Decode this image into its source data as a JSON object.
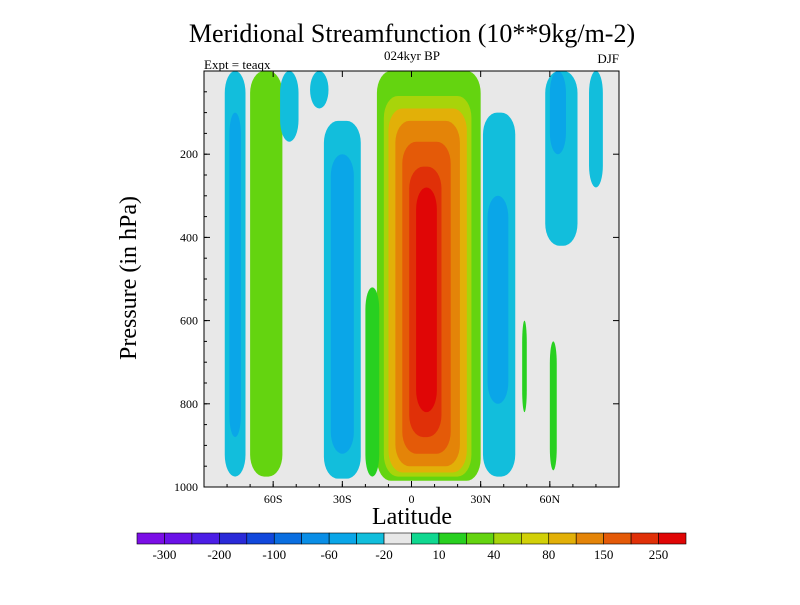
{
  "chart_data": {
    "type": "heatmap",
    "title": "Meridional Streamfunction (10**9kg/m-2)",
    "subtitle": "024kyr BP",
    "left_label": "Expt = teaqx",
    "right_label": "DJF",
    "xlabel": "Latitude",
    "ylabel": "Pressure (in hPa)",
    "xlim": [
      -90,
      90
    ],
    "ylim": [
      1000,
      0
    ],
    "x_ticks": [
      {
        "value": -60,
        "label": "60S"
      },
      {
        "value": -30,
        "label": "30S"
      },
      {
        "value": 0,
        "label": "0"
      },
      {
        "value": 30,
        "label": "30N"
      },
      {
        "value": 60,
        "label": "60N"
      }
    ],
    "y_ticks": [
      {
        "value": 200,
        "label": "200"
      },
      {
        "value": 400,
        "label": "400"
      },
      {
        "value": 600,
        "label": "600"
      },
      {
        "value": 800,
        "label": "800"
      },
      {
        "value": 1000,
        "label": "1000"
      }
    ],
    "colorbar": {
      "colors": [
        "#7b0ee6",
        "#6a12e8",
        "#4c1ee6",
        "#2a2ad8",
        "#1248dc",
        "#0a6ee0",
        "#0a8ee6",
        "#0aa6e8",
        "#12bedc",
        "#e8e8e8",
        "#10d890",
        "#28d020",
        "#64d410",
        "#a8d40a",
        "#d2d008",
        "#e2b008",
        "#e48408",
        "#e45a08",
        "#e03008",
        "#e00606"
      ],
      "labels": [
        "-300",
        "-200",
        "-100",
        "-60",
        "-20",
        "10",
        "40",
        "80",
        "150",
        "250"
      ],
      "label_after_box": [
        0,
        2,
        4,
        6,
        8,
        10,
        12,
        14,
        16,
        18
      ]
    },
    "regions": [
      {
        "lat": [
          -81,
          -72
        ],
        "p": [
          0,
          975
        ],
        "level": -25,
        "name": "polar cell south"
      },
      {
        "lat": [
          -79,
          -74
        ],
        "p": [
          100,
          880
        ],
        "level": -45,
        "name": "polar cell south core"
      },
      {
        "lat": [
          -70,
          -56
        ],
        "p": [
          0,
          975
        ],
        "level": 35,
        "name": "ferrel cell south"
      },
      {
        "lat": [
          -57,
          -49
        ],
        "p": [
          0,
          170
        ],
        "level": -25,
        "name": "upper south branch"
      },
      {
        "lat": [
          -38,
          -22
        ],
        "p": [
          120,
          980
        ],
        "level": -25,
        "name": "south negative cell"
      },
      {
        "lat": [
          -35,
          -25
        ],
        "p": [
          200,
          920
        ],
        "level": -45,
        "name": "south negative core"
      },
      {
        "lat": [
          -15,
          30
        ],
        "p": [
          0,
          985
        ],
        "level": 35,
        "name": "hadley outer"
      },
      {
        "lat": [
          -12,
          26
        ],
        "p": [
          60,
          975
        ],
        "level": 60,
        "name": "hadley l1"
      },
      {
        "lat": [
          -10,
          24
        ],
        "p": [
          90,
          965
        ],
        "level": 100,
        "name": "hadley l2"
      },
      {
        "lat": [
          -7,
          21
        ],
        "p": [
          120,
          950
        ],
        "level": 130,
        "name": "hadley l3"
      },
      {
        "lat": [
          -4,
          17
        ],
        "p": [
          170,
          920
        ],
        "level": 170,
        "name": "hadley l4"
      },
      {
        "lat": [
          -1,
          13
        ],
        "p": [
          230,
          880
        ],
        "level": 220,
        "name": "hadley l5"
      },
      {
        "lat": [
          2,
          11
        ],
        "p": [
          280,
          820
        ],
        "level": 260,
        "name": "hadley core"
      },
      {
        "lat": [
          -20,
          -14
        ],
        "p": [
          520,
          975
        ],
        "level": 18,
        "name": "south flank"
      },
      {
        "lat": [
          31,
          45
        ],
        "p": [
          100,
          975
        ],
        "level": -25,
        "name": "north negative cell"
      },
      {
        "lat": [
          33,
          42
        ],
        "p": [
          300,
          800
        ],
        "level": -45,
        "name": "north negative core"
      },
      {
        "lat": [
          48,
          50
        ],
        "p": [
          600,
          820
        ],
        "level": 18,
        "name": "north thin positive"
      },
      {
        "lat": [
          60,
          63
        ],
        "p": [
          650,
          960
        ],
        "level": 18,
        "name": "north surface positive"
      },
      {
        "lat": [
          58,
          72
        ],
        "p": [
          0,
          420
        ],
        "level": -25,
        "name": "north upper negative"
      },
      {
        "lat": [
          60,
          67
        ],
        "p": [
          0,
          200
        ],
        "level": -45,
        "name": "north upper core"
      },
      {
        "lat": [
          77,
          83
        ],
        "p": [
          0,
          280
        ],
        "level": -25,
        "name": "north polar"
      },
      {
        "lat": [
          -44,
          -36
        ],
        "p": [
          0,
          90
        ],
        "level": -25,
        "name": "upper south strip"
      }
    ]
  }
}
